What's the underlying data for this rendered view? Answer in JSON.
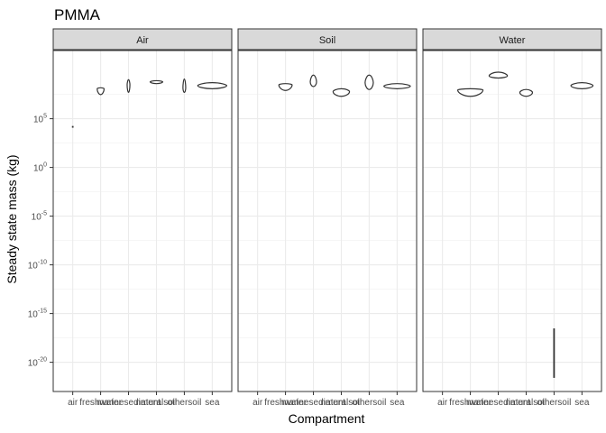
{
  "chart_data": {
    "type": "violin",
    "title": "PMMA",
    "xlabel": "Compartment",
    "ylabel": "Steady state mass (kg)",
    "y_scale": "log10",
    "ylim": [
      1e-23,
      1000000000000.0
    ],
    "y_ticks": [
      {
        "value": 100000.0,
        "base": "10",
        "exp": "5"
      },
      {
        "value": 1.0,
        "base": "10",
        "exp": "0"
      },
      {
        "value": 1e-05,
        "base": "10",
        "exp": "-5"
      },
      {
        "value": 1e-10,
        "base": "10",
        "exp": "-10"
      },
      {
        "value": 1e-15,
        "base": "10",
        "exp": "-15"
      },
      {
        "value": 1e-20,
        "base": "10",
        "exp": "-20"
      }
    ],
    "categories": [
      "air",
      "freshwater",
      "marinesediment",
      "naturalsoil",
      "othersoil",
      "sea"
    ],
    "grid": true,
    "facets": [
      {
        "label": "Air",
        "violins": [
          {
            "category": "air",
            "min": 12000.0,
            "max": 18000.0,
            "mode": 15000.0,
            "width": 0.03
          },
          {
            "category": "freshwater",
            "min": 30000000.0,
            "max": 150000000.0,
            "mode": 120000000.0,
            "width": 0.55
          },
          {
            "category": "marinesediment",
            "min": 50000000.0,
            "max": 1000000000.0,
            "mode": 300000000.0,
            "width": 0.22
          },
          {
            "category": "naturalsoil",
            "min": 400000000.0,
            "max": 800000000.0,
            "mode": 600000000.0,
            "width": 1.0
          },
          {
            "category": "othersoil",
            "min": 50000000.0,
            "max": 1200000000.0,
            "mode": 150000000.0,
            "width": 0.22
          },
          {
            "category": "sea",
            "min": 120000000.0,
            "max": 500000000.0,
            "mode": 250000000.0,
            "width": 2.3
          }
        ]
      },
      {
        "label": "Soil",
        "violins": [
          {
            "category": "freshwater",
            "min": 80000000.0,
            "max": 400000000.0,
            "mode": 300000000.0,
            "width": 1.05
          },
          {
            "category": "marinesediment",
            "min": 200000000.0,
            "max": 3000000000.0,
            "mode": 600000000.0,
            "width": 0.5
          },
          {
            "category": "naturalsoil",
            "min": 20000000.0,
            "max": 120000000.0,
            "mode": 60000000.0,
            "width": 1.3
          },
          {
            "category": "othersoil",
            "min": 100000000.0,
            "max": 3000000000.0,
            "mode": 500000000.0,
            "width": 0.65
          },
          {
            "category": "sea",
            "min": 120000000.0,
            "max": 400000000.0,
            "mode": 220000000.0,
            "width": 2.1
          }
        ]
      },
      {
        "label": "Water",
        "violins": [
          {
            "category": "freshwater",
            "min": 20000000.0,
            "max": 120000000.0,
            "mode": 90000000.0,
            "width": 2.0
          },
          {
            "category": "marinesediment",
            "min": 1500000000.0,
            "max": 6000000000.0,
            "mode": 2500000000.0,
            "width": 1.45
          },
          {
            "category": "naturalsoil",
            "min": 20000000.0,
            "max": 100000000.0,
            "mode": 50000000.0,
            "width": 1.0
          },
          {
            "category": "othersoil",
            "min": 2.5e-22,
            "max": 3e-17,
            "mode": 1e-19,
            "width": 0.06
          },
          {
            "category": "sea",
            "min": 120000000.0,
            "max": 500000000.0,
            "mode": 250000000.0,
            "width": 1.75
          }
        ]
      }
    ]
  }
}
